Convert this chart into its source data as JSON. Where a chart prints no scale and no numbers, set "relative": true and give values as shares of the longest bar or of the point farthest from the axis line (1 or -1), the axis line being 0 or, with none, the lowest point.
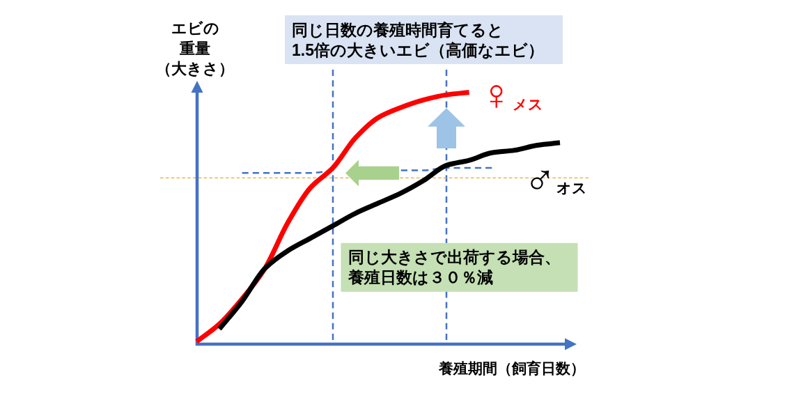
{
  "chart_data": {
    "type": "line",
    "title": "同じ日数の養殖時間育てると1.5倍の大きいエビ（高価なエビ）",
    "xlabel": "養殖期間（飼育日数）",
    "ylabel": "エビの重量（大きさ）",
    "annotations": [
      "同じ大きさで出荷する場合、養殖日数は３０％減"
    ],
    "relative": true,
    "categories": [
      null,
      null,
      null,
      null,
      null,
      null,
      null,
      null,
      null,
      null,
      null,
      null,
      null,
      null,
      null,
      null,
      null
    ],
    "series": [
      {
        "color": "#4472c4",
        "line_style": "dashed",
        "values": [
          null,
          null,
          0.68,
          0.68,
          0.68,
          0.68,
          0.69,
          null,
          null,
          0.69,
          0.69,
          0.7,
          0.7,
          0.7,
          null,
          null,
          null
        ]
      },
      {
        "name": "♀メス",
        "color": "#ff0000",
        "values": [
          0.01,
          0.08,
          0.18,
          0.3,
          0.48,
          0.62,
          0.7,
          0.82,
          0.9,
          0.94,
          0.97,
          0.99,
          1,
          null,
          null,
          null,
          null
        ]
      },
      {
        "name": "♂オス",
        "color": "#000000",
        "values": [
          null,
          0.06,
          0.17,
          0.3,
          0.37,
          0.42,
          0.47,
          0.52,
          0.56,
          0.6,
          0.65,
          0.71,
          0.73,
          0.76,
          0.77,
          0.79,
          0.8
        ]
      }
    ],
    "ref_lines": [
      {
        "axis": "y",
        "value": 0.66,
        "color": "#f0a830",
        "line_style": "dashed"
      }
    ]
  }
}
